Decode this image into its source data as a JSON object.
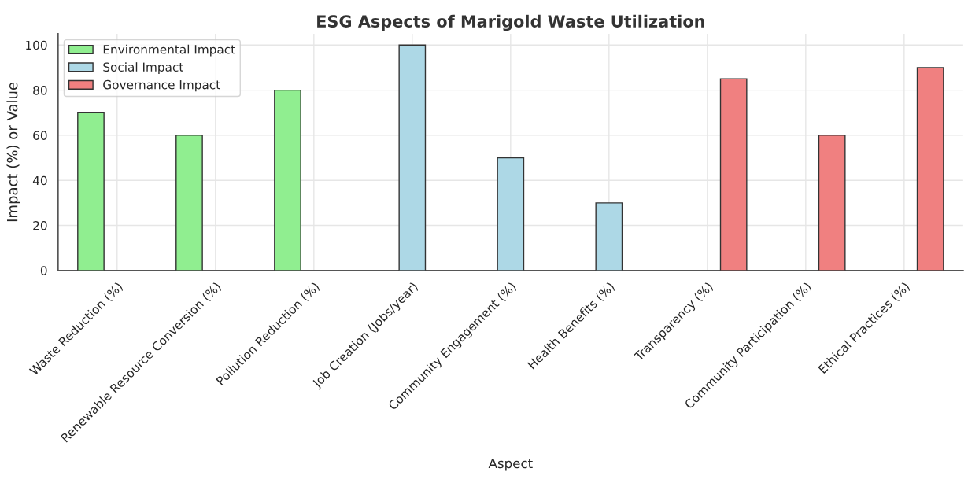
{
  "chart_data": {
    "type": "bar",
    "title": "ESG Aspects of Marigold Waste Utilization",
    "xlabel": "Aspect",
    "ylabel": "Impact (%) or Value",
    "categories": [
      "Waste Reduction (%)",
      "Renewable Resource Conversion (%)",
      "Pollution Reduction (%)",
      "Job Creation (Jobs/year)",
      "Community Engagement (%)",
      "Health Benefits (%)",
      "Transparency (%)",
      "Community Participation (%)",
      "Ethical Practices (%)"
    ],
    "series": [
      {
        "name": "Environmental Impact",
        "color": "#90ee90",
        "values": [
          70,
          60,
          80,
          null,
          null,
          null,
          null,
          null,
          null
        ]
      },
      {
        "name": "Social Impact",
        "color": "#add8e6",
        "values": [
          null,
          null,
          null,
          100,
          50,
          30,
          null,
          null,
          null
        ]
      },
      {
        "name": "Governance Impact",
        "color": "#f08080",
        "values": [
          null,
          null,
          null,
          null,
          null,
          null,
          85,
          60,
          90
        ]
      }
    ],
    "ylim": [
      0,
      105
    ],
    "yticks": [
      0,
      20,
      40,
      60,
      80,
      100
    ],
    "grid": true,
    "legend": "top left"
  }
}
